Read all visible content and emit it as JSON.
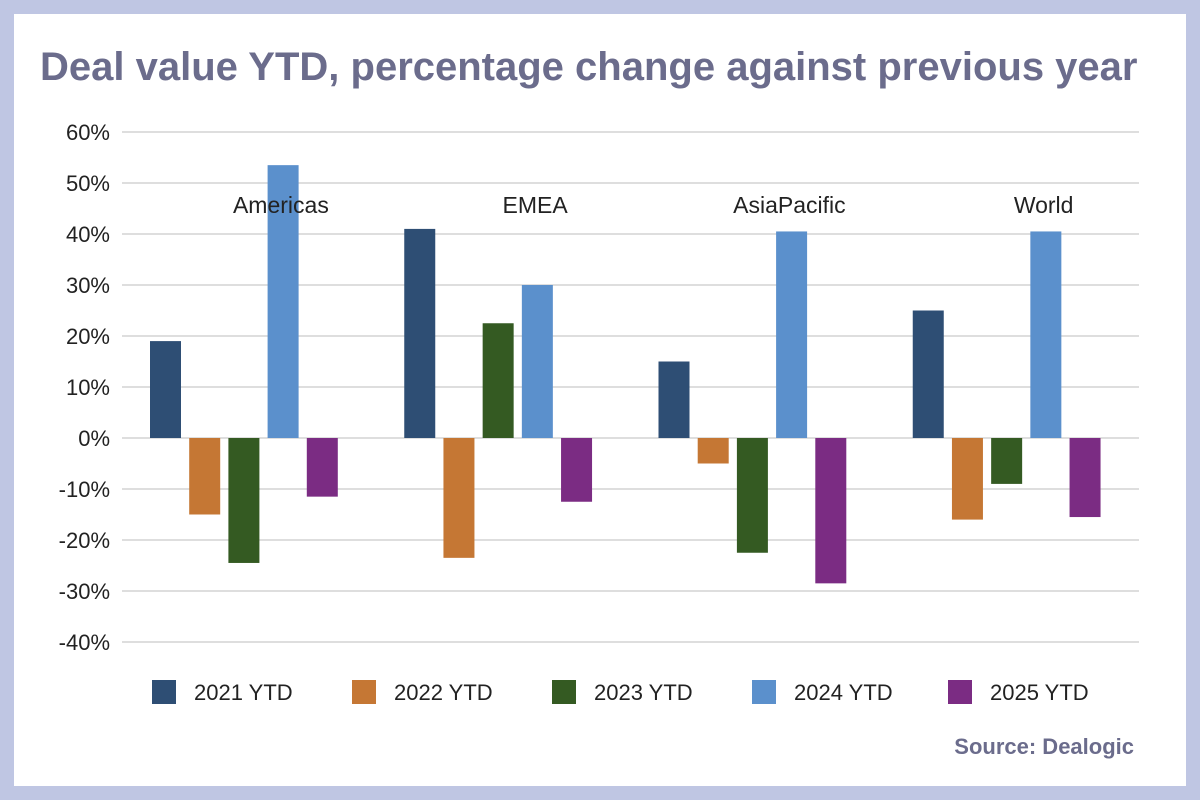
{
  "chart_data": {
    "type": "bar",
    "title": "Deal value YTD, percentage change against previous year",
    "categories": [
      "Americas",
      "EMEA",
      "AsiaPacific",
      "World"
    ],
    "series": [
      {
        "name": "2021 YTD",
        "color": "#2e4e74",
        "values": [
          19,
          41,
          15,
          25
        ]
      },
      {
        "name": "2022 YTD",
        "color": "#c57734",
        "values": [
          -15,
          -23.5,
          -5,
          -16
        ]
      },
      {
        "name": "2023 YTD",
        "color": "#345a22",
        "values": [
          -24.5,
          22.5,
          -22.5,
          -9
        ]
      },
      {
        "name": "2024 YTD",
        "color": "#5b90cc",
        "values": [
          53.5,
          30,
          40.5,
          40.5
        ]
      },
      {
        "name": "2025 YTD",
        "color": "#7b2c83",
        "values": [
          -11.5,
          -12.5,
          -28.5,
          -15.5
        ]
      }
    ],
    "ylim": [
      -40,
      60
    ],
    "yticks": [
      60,
      50,
      40,
      30,
      20,
      10,
      0,
      -10,
      -20,
      -30,
      -40
    ],
    "ytick_labels": [
      "60%",
      "50%",
      "40%",
      "30%",
      "20%",
      "10%",
      "0%",
      "-10%",
      "-20%",
      "-30%",
      "-40%"
    ],
    "grid": true,
    "legend_position": "bottom",
    "source": "Source: Dealogic"
  }
}
